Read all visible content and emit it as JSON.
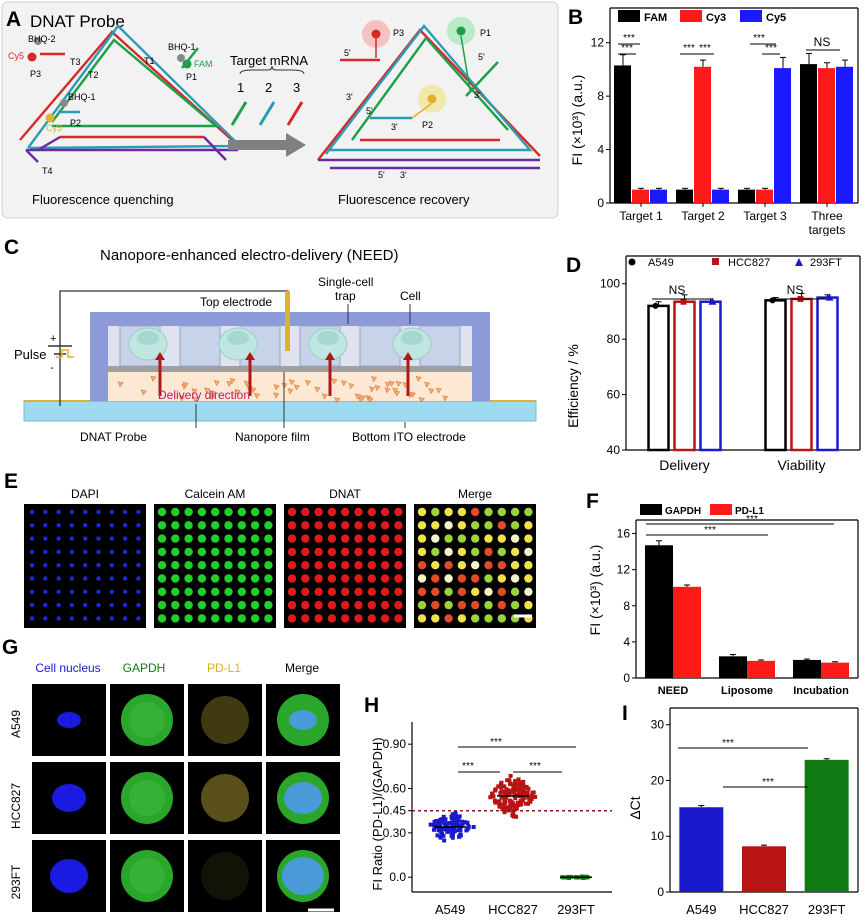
{
  "panelA": {
    "letter": "A",
    "title": "DNAT Probe",
    "labels": {
      "bhq2": "BHQ-2",
      "cy5": "Cy5",
      "p3": "P3",
      "t3": "T3",
      "t2": "T2",
      "t1": "T1",
      "bhq1a": "BHQ-1",
      "fam": "FAM",
      "p1": "P1",
      "bhq1b": "BHQ-1",
      "cy3": "Cy3",
      "p2": "P2",
      "t4": "T4"
    },
    "target_title": "Target mRNA",
    "target_nums": [
      "1",
      "2",
      "3"
    ],
    "right_labels": {
      "p3": "P3",
      "p1": "P1",
      "p2": "P2",
      "five1": "5'",
      "five2": "5'",
      "five3": "5'",
      "five4": "5'",
      "three1": "3'",
      "three2": "3'",
      "three3": "3'",
      "three4": "3'"
    },
    "left_caption": "Fluorescence quenching",
    "right_caption": "Fluorescence recovery"
  },
  "panelB": {
    "letter": "B",
    "legend": [
      "FAM",
      "Cy3",
      "Cy5"
    ],
    "ylabel": "FI (×10³) (a.u.)",
    "sig": [
      "***",
      "***",
      "***",
      "***",
      "***",
      "***",
      "NS"
    ]
  },
  "panelC": {
    "letter": "C",
    "title": "Nanopore-enhanced electro-delivery (NEED)",
    "labels": {
      "top_electrode": "Top electrode",
      "trap1": "Single-cell",
      "trap2": "trap",
      "cell": "Cell",
      "plus": "+",
      "minus": "-",
      "pulse": "Pulse",
      "delivery": "Delivery direction",
      "probe": "DNAT Probe",
      "film": "Nanopore film",
      "ito": "Bottom ITO electrode"
    }
  },
  "panelD": {
    "letter": "D",
    "legend": [
      "A549",
      "HCC827",
      "293FT"
    ],
    "ylabel": "Efficiency / %",
    "sig": [
      "NS",
      "NS"
    ]
  },
  "panelE": {
    "letter": "E",
    "channels": [
      "DAPI",
      "Calcein AM",
      "DNAT",
      "Merge"
    ]
  },
  "panelF": {
    "letter": "F",
    "legend": [
      "GAPDH",
      "PD-L1"
    ],
    "ylabel": "FI (×10³) (a.u.)",
    "sig": [
      "***",
      "***"
    ]
  },
  "panelG": {
    "letter": "G",
    "columns": [
      "Cell nucleus",
      "GAPDH",
      "PD-L1",
      "Merge"
    ],
    "rows": [
      "A549",
      "HCC827",
      "293FT"
    ]
  },
  "panelH": {
    "letter": "H",
    "ylabel": "FI Ratio (PD-L1)/(GAPDH)",
    "threshold_label": "0.45",
    "sig": [
      "***",
      "***",
      "***"
    ]
  },
  "panelI": {
    "letter": "I",
    "ylabel": "ΔCt",
    "sig": [
      "***",
      "***"
    ]
  },
  "colors": {
    "fam": "#000000",
    "cy3": "#ff1a1a",
    "cy5": "#1a1aff",
    "a549": "#1a1acc",
    "hcc827": "#b81414",
    "fr293": "#127a12",
    "gapdh": "#000000",
    "pdl1": "#ff1a1a",
    "strand_red": "#d42a2a",
    "strand_green": "#1f9e4a",
    "strand_teal": "#2a9db5",
    "strand_purple": "#6a2aa0"
  },
  "chart_data": [
    {
      "id": "B",
      "type": "bar",
      "categories": [
        "Target 1",
        "Target 2",
        "Target 3",
        "Three targets"
      ],
      "series": [
        {
          "name": "FAM",
          "values": [
            10.3,
            1.0,
            1.0,
            10.4
          ],
          "errors": [
            0.8,
            0.1,
            0.1,
            0.8
          ]
        },
        {
          "name": "Cy3",
          "values": [
            1.0,
            10.2,
            1.0,
            10.1
          ],
          "errors": [
            0.1,
            0.5,
            0.1,
            0.4
          ]
        },
        {
          "name": "Cy5",
          "values": [
            1.0,
            1.0,
            10.1,
            10.2
          ],
          "errors": [
            0.1,
            0.1,
            0.8,
            0.5
          ]
        }
      ],
      "ylabel": "FI (×10³) (a.u.)",
      "ylim": [
        0,
        14.6
      ],
      "yticks": [
        0,
        4,
        8,
        12
      ]
    },
    {
      "id": "D",
      "type": "bar",
      "categories": [
        "Delivery",
        "Viability"
      ],
      "series": [
        {
          "name": "A549",
          "values": [
            92,
            94
          ],
          "errors": [
            1.5,
            1.0
          ]
        },
        {
          "name": "HCC827",
          "values": [
            93.5,
            94.5
          ],
          "errors": [
            2.5,
            2.0
          ]
        },
        {
          "name": "293FT",
          "values": [
            93.5,
            95
          ],
          "errors": [
            1.0,
            1.0
          ]
        }
      ],
      "ylabel": "Efficiency / %",
      "ylim": [
        40,
        110
      ],
      "yticks": [
        40,
        60,
        80,
        100
      ]
    },
    {
      "id": "F",
      "type": "bar",
      "categories": [
        "NEED",
        "Liposome",
        "Incubation"
      ],
      "series": [
        {
          "name": "GAPDH",
          "values": [
            14.7,
            2.4,
            2.0
          ],
          "errors": [
            0.5,
            0.2,
            0.1
          ]
        },
        {
          "name": "PD-L1",
          "values": [
            10.1,
            1.9,
            1.7
          ],
          "errors": [
            0.2,
            0.1,
            0.1
          ]
        }
      ],
      "ylabel": "FI (×10³) (a.u.)",
      "ylim": [
        0,
        17.5
      ],
      "yticks": [
        0,
        4,
        8,
        12,
        16
      ]
    },
    {
      "id": "H",
      "type": "scatter",
      "categories": [
        "A549",
        "HCC827",
        "293FT"
      ],
      "series": [
        {
          "name": "A549",
          "center": 0.34,
          "spread": 0.07,
          "n": 90
        },
        {
          "name": "HCC827",
          "center": 0.55,
          "spread": 0.1,
          "n": 140
        },
        {
          "name": "293FT",
          "center": 0.0,
          "spread": 0.005,
          "n": 25
        }
      ],
      "threshold": 0.45,
      "ylabel": "FI Ratio (PD-L1)/(GAPDH)",
      "ylim": [
        -0.1,
        1.05
      ],
      "yticks": [
        0.0,
        0.3,
        0.45,
        0.6,
        0.9
      ]
    },
    {
      "id": "I",
      "type": "bar",
      "categories": [
        "A549",
        "HCC827",
        "293FT"
      ],
      "values": [
        15.2,
        8.2,
        23.7
      ],
      "errors": [
        0.3,
        0.2,
        0.2
      ],
      "ylabel": "ΔCt",
      "ylim": [
        0,
        33
      ],
      "yticks": [
        0,
        10,
        20,
        30
      ]
    }
  ]
}
